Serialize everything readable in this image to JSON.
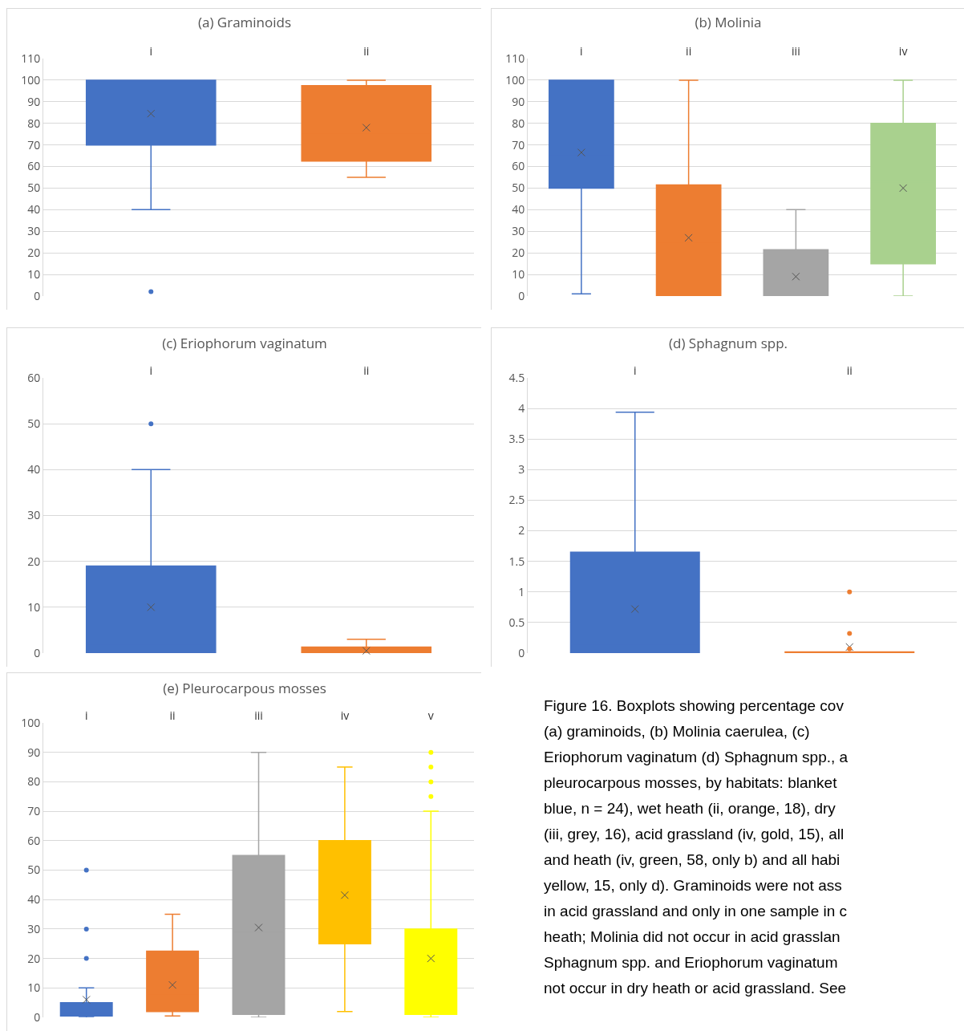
{
  "chart_data": [
    {
      "type": "box",
      "title": "(a) Graminoids",
      "categories": [
        "i",
        "ii"
      ],
      "colors": [
        "#4472c4",
        "#ed7d31"
      ],
      "ylim": [
        0,
        110
      ],
      "yticks": [
        0,
        10,
        20,
        30,
        40,
        50,
        60,
        70,
        80,
        90,
        100,
        110
      ],
      "grid": "y",
      "boxes": [
        {
          "low": 40,
          "q1": 70,
          "median": 98,
          "q3": 100,
          "high": 100,
          "mean": 84.5,
          "outliers": [
            2
          ]
        },
        {
          "low": 55,
          "q1": 62.5,
          "median": 75,
          "q3": 97.5,
          "high": 100,
          "mean": 78
        }
      ]
    },
    {
      "type": "box",
      "title": "(b) Molinia",
      "categories": [
        "i",
        "ii",
        "iii",
        "iv"
      ],
      "colors": [
        "#4472c4",
        "#ed7d31",
        "#a5a5a5",
        "#a9d18e"
      ],
      "ylim": [
        0,
        110
      ],
      "yticks": [
        0,
        10,
        20,
        30,
        40,
        50,
        60,
        70,
        80,
        90,
        100,
        110
      ],
      "grid": "y",
      "boxes": [
        {
          "low": 1,
          "q1": 50,
          "median": 65,
          "q3": 100,
          "high": 100,
          "mean": 66.5
        },
        {
          "low": 0,
          "q1": 0,
          "median": 25,
          "q3": 51.5,
          "high": 100,
          "mean": 27
        },
        {
          "low": 0,
          "q1": 0,
          "median": 0,
          "q3": 21.5,
          "high": 40,
          "mean": 9
        },
        {
          "low": 0,
          "q1": 15,
          "median": 53,
          "q3": 80,
          "high": 100,
          "mean": 50
        }
      ]
    },
    {
      "type": "box",
      "title": "(c) Eriophorum vaginatum",
      "categories": [
        "i",
        "ii"
      ],
      "colors": [
        "#4472c4",
        "#ed7d31"
      ],
      "ylim": [
        0,
        60
      ],
      "yticks": [
        0,
        10,
        20,
        30,
        40,
        50,
        60
      ],
      "grid": "y",
      "boxes": [
        {
          "low": 0,
          "q1": 0,
          "median": 2,
          "q3": 19,
          "high": 40,
          "mean": 10,
          "outliers": [
            50
          ]
        },
        {
          "low": 0,
          "q1": 0,
          "median": 0,
          "q3": 1.3,
          "high": 3,
          "mean": 0.5
        }
      ]
    },
    {
      "type": "box",
      "title": "(d) Sphagnum spp.",
      "categories": [
        "i",
        "ii"
      ],
      "colors": [
        "#4472c4",
        "#ed7d31"
      ],
      "ylim": [
        0,
        4.5
      ],
      "yticks": [
        0,
        0.5,
        1,
        1.5,
        2,
        2.5,
        3,
        3.5,
        4,
        4.5
      ],
      "grid": "y",
      "boxes": [
        {
          "low": 0,
          "q1": 0,
          "median": 0.15,
          "q3": 1.65,
          "high": 3.94,
          "mean": 0.72
        },
        {
          "low": 0,
          "q1": 0,
          "median": 0,
          "q3": 0.02,
          "high": 0.02,
          "mean": 0.1,
          "outliers": [
            1,
            0.32,
            0.07
          ]
        }
      ]
    },
    {
      "type": "box",
      "title": "(e) Pleurocarpous mosses",
      "categories": [
        "i",
        "ii",
        "iii",
        "iv",
        "v"
      ],
      "colors": [
        "#4472c4",
        "#ed7d31",
        "#a5a5a5",
        "#ffc000",
        "#ffff00"
      ],
      "ylim": [
        0,
        100
      ],
      "yticks": [
        0,
        10,
        20,
        30,
        40,
        50,
        60,
        70,
        80,
        90,
        100
      ],
      "grid": "y",
      "boxes": [
        {
          "low": 0,
          "q1": 0.5,
          "median": 1.5,
          "q3": 5,
          "high": 10,
          "mean": 6,
          "outliers": [
            20,
            30,
            50
          ]
        },
        {
          "low": 0.5,
          "q1": 2,
          "median": 8,
          "q3": 22.5,
          "high": 35,
          "mean": 11
        },
        {
          "low": 0,
          "q1": 1,
          "median": 29,
          "q3": 55,
          "high": 90,
          "mean": 30.5
        },
        {
          "low": 2,
          "q1": 25,
          "median": 30,
          "q3": 60,
          "high": 85,
          "mean": 41.5
        },
        {
          "low": 0,
          "q1": 1,
          "median": 8,
          "q3": 30,
          "high": 70,
          "mean": 20,
          "outliers": [
            75,
            80,
            85,
            90
          ]
        }
      ]
    },
    {
      "type": "other",
      "annotations": [
        "Figure 16. Boxplots showing percentage cov",
        "(a) graminoids, (b) Molinia caerulea, (c)",
        "Eriophorum vaginatum (d) Sphagnum spp., a",
        "pleurocarpous mosses, by habitats: blanket",
        "blue, n = 24), wet heath (ii, orange, 18), dry",
        "(iii, grey, 16), acid grassland (iv, gold, 15), all",
        "and heath (iv, green, 58, only b) and all habi",
        "yellow, 15, only d). Graminoids were not ass",
        "in acid grassland and only in one sample in c",
        "heath; Molinia did not occur in acid grasslan",
        "Sphagnum spp. and Eriophorum vaginatum",
        "not occur in dry heath or acid grassland. See"
      ]
    }
  ]
}
